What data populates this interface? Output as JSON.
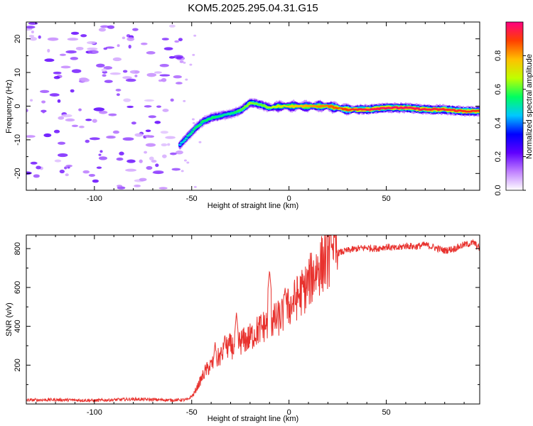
{
  "title": "KOM5.2025.295.04.31.G15",
  "chart_data": [
    {
      "type": "heatmap",
      "name": "spectrogram",
      "xlabel": "Height of straight line (km)",
      "ylabel": "Frequency (Hz)",
      "xlim": [
        -135,
        98
      ],
      "ylim": [
        -25,
        25
      ],
      "xticks": [
        -100,
        -50,
        0,
        50
      ],
      "xtick_labels": [
        "-100",
        "-50",
        "0",
        "50"
      ],
      "yticks": [
        -20,
        -10,
        0,
        10,
        20
      ],
      "ytick_labels": [
        "-20",
        "-10",
        "0",
        "10",
        "20"
      ],
      "colorbar": {
        "label": "Normalized spectral amplitude",
        "range": [
          0,
          1
        ],
        "ticks": [
          0.0,
          0.2,
          0.4,
          0.6,
          0.8
        ],
        "tick_labels": [
          "0.0",
          "0.2",
          "0.4",
          "0.6",
          "0.8"
        ],
        "colormap_stops": [
          "#ffffff",
          "#c080ff",
          "#6000ff",
          "#0000ff",
          "#00c8ff",
          "#00ff60",
          "#c0ff00",
          "#ffc000",
          "#ff4000",
          "#ff0080"
        ]
      },
      "ridge": {
        "description": "Peak frequency track of the signal",
        "height_km": [
          -56,
          -52,
          -48,
          -44,
          -40,
          -36,
          -32,
          -28,
          -24,
          -20,
          -15,
          -10,
          -5,
          0,
          10,
          20,
          30,
          40,
          50,
          60,
          70,
          80,
          90,
          98
        ],
        "frequency_hz": [
          -11.5,
          -9,
          -6.5,
          -4.5,
          -3.5,
          -3,
          -2.5,
          -2,
          -1,
          1,
          0.5,
          -0.5,
          0,
          0,
          0,
          0,
          -1,
          -1,
          -0.5,
          -0.5,
          -1,
          -1,
          -1.5,
          -1.5
        ],
        "amplitude": [
          0.45,
          0.5,
          0.55,
          0.55,
          0.55,
          0.55,
          0.5,
          0.55,
          0.6,
          0.65,
          0.6,
          0.65,
          0.7,
          0.75,
          0.8,
          0.85,
          0.9,
          0.95,
          0.97,
          0.97,
          0.95,
          0.93,
          0.92,
          0.92
        ]
      },
      "noise_region_km": [
        -135,
        -55
      ]
    },
    {
      "type": "line",
      "name": "snr",
      "xlabel": "Height of straight line (km)",
      "ylabel": "SNR (v/v)",
      "xlim": [
        -135,
        98
      ],
      "ylim": [
        0,
        870
      ],
      "xticks": [
        -100,
        -50,
        0,
        50
      ],
      "xtick_labels": [
        "-100",
        "-50",
        "0",
        "50"
      ],
      "yticks": [
        200,
        400,
        600,
        800
      ],
      "ytick_labels": [
        "200",
        "400",
        "600",
        "800"
      ],
      "line_color": "#e8322e",
      "series": [
        {
          "name": "SNR",
          "x": [
            -135,
            -120,
            -100,
            -80,
            -60,
            -52,
            -49,
            -46,
            -43,
            -40,
            -37,
            -34,
            -31,
            -28,
            -25,
            -22,
            -19,
            -16,
            -13,
            -10,
            -7,
            -4,
            -1,
            2,
            5,
            8,
            11,
            14,
            17,
            20,
            23,
            26,
            30,
            35,
            40,
            45,
            50,
            55,
            60,
            65,
            70,
            75,
            80,
            85,
            90,
            95,
            98
          ],
          "y": [
            20,
            22,
            18,
            25,
            20,
            22,
            50,
            110,
            170,
            200,
            230,
            260,
            300,
            290,
            320,
            330,
            350,
            380,
            400,
            420,
            430,
            450,
            490,
            520,
            560,
            590,
            640,
            690,
            720,
            760,
            770,
            780,
            790,
            800,
            805,
            800,
            810,
            800,
            815,
            810,
            820,
            805,
            790,
            800,
            820,
            830,
            800
          ],
          "spikes": [
            {
              "x": -38,
              "y": 320
            },
            {
              "x": -33,
              "y": 360
            },
            {
              "x": -27,
              "y": 470
            },
            {
              "x": -10,
              "y": 690
            },
            {
              "x": -2,
              "y": 600
            },
            {
              "x": 22,
              "y": 830
            }
          ]
        }
      ]
    }
  ]
}
